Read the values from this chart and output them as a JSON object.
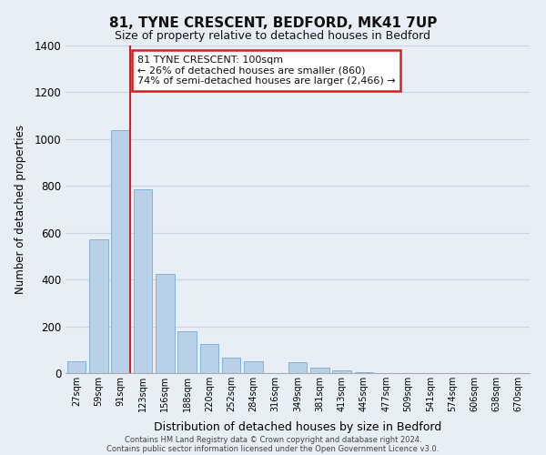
{
  "title": "81, TYNE CRESCENT, BEDFORD, MK41 7UP",
  "subtitle": "Size of property relative to detached houses in Bedford",
  "xlabel": "Distribution of detached houses by size in Bedford",
  "ylabel": "Number of detached properties",
  "bar_labels": [
    "27sqm",
    "59sqm",
    "91sqm",
    "123sqm",
    "156sqm",
    "188sqm",
    "220sqm",
    "252sqm",
    "284sqm",
    "316sqm",
    "349sqm",
    "381sqm",
    "413sqm",
    "445sqm",
    "477sqm",
    "509sqm",
    "541sqm",
    "574sqm",
    "606sqm",
    "638sqm",
    "670sqm"
  ],
  "bar_heights": [
    50,
    570,
    1040,
    785,
    425,
    178,
    125,
    65,
    50,
    0,
    48,
    22,
    12,
    5,
    0,
    0,
    0,
    0,
    0,
    0,
    0
  ],
  "bar_color": "#b8d0e8",
  "bar_edge_color": "#7aabcf",
  "ylim": [
    0,
    1400
  ],
  "yticks": [
    0,
    200,
    400,
    600,
    800,
    1000,
    1200,
    1400
  ],
  "vline_index": 2,
  "annotation_title": "81 TYNE CRESCENT: 100sqm",
  "annotation_line1": "← 26% of detached houses are smaller (860)",
  "annotation_line2": "74% of semi-detached houses are larger (2,466) →",
  "annotation_box_color": "#ffffff",
  "annotation_box_edge": "#cc2222",
  "vline_color": "#cc2222",
  "background_color": "#e8eef5",
  "grid_color": "#c8d4e0",
  "footer1": "Contains HM Land Registry data © Crown copyright and database right 2024.",
  "footer2": "Contains public sector information licensed under the Open Government Licence v3.0."
}
